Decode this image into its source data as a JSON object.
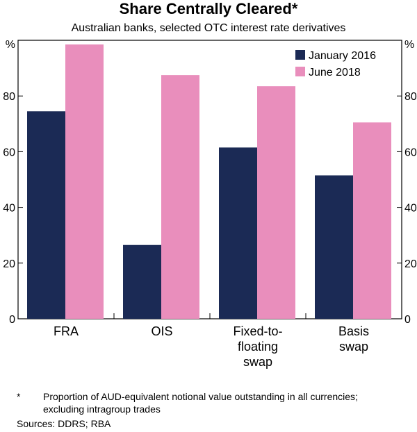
{
  "chart_data": {
    "type": "bar",
    "title": "Share Centrally Cleared*",
    "subtitle": "Australian banks, selected OTC interest rate derivatives",
    "categories": [
      [
        "FRA"
      ],
      [
        "OIS"
      ],
      [
        "Fixed-to-",
        "floating",
        "swap"
      ],
      [
        "Basis",
        "swap"
      ]
    ],
    "series": [
      {
        "name": "January 2016",
        "color": "#1b2a55",
        "values": [
          74.5,
          26.5,
          61.5,
          51.5
        ]
      },
      {
        "name": "June 2018",
        "color": "#e98ebc",
        "values": [
          98.5,
          87.5,
          83.5,
          70.5
        ]
      }
    ],
    "yunit_left": "%",
    "yunit_right": "%",
    "yticks": [
      0,
      20,
      40,
      60,
      80
    ],
    "ylim": [
      0,
      100
    ],
    "legend_position": "top-right",
    "grid": false
  },
  "footnote": {
    "marker": "*",
    "text": "Proportion of AUD-equivalent notional value outstanding in all currencies; excluding intragroup trades"
  },
  "sources": "Sources: DDRS; RBA"
}
